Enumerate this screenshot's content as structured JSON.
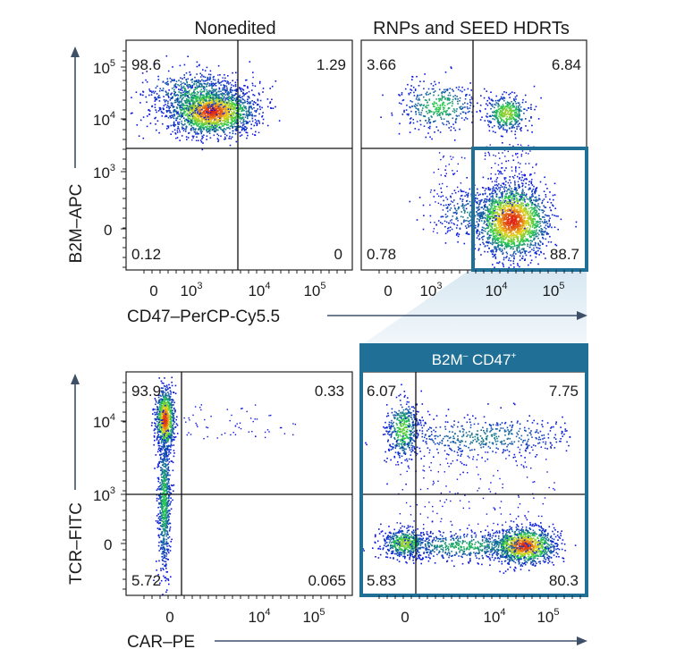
{
  "top": {
    "left_title": "Nonedited",
    "right_title": "RNPs and SEED HDRTs",
    "y_axis_label": "B2M–APC",
    "x_axis_label": "CD47–PerCP-Cy5.5",
    "y_ticks": [
      {
        "base": "10",
        "exp": "5"
      },
      {
        "base": "10",
        "exp": "4"
      },
      {
        "base": "10",
        "exp": "3"
      },
      {
        "base": "0",
        "exp": ""
      }
    ],
    "x_ticks": [
      {
        "base": "0",
        "exp": ""
      },
      {
        "base": "10",
        "exp": "3"
      },
      {
        "base": "10",
        "exp": "4"
      },
      {
        "base": "10",
        "exp": "5"
      }
    ],
    "left_quadrants": {
      "ul": "98.6",
      "ur": "1.29",
      "ll": "0.12",
      "lr": "0"
    },
    "right_quadrants": {
      "ul": "3.66",
      "ur": "6.84",
      "ll": "0.78",
      "lr": "88.7"
    }
  },
  "bottom": {
    "gate_label": {
      "base1": "B2M",
      "sup1": "–",
      "base2": " CD47",
      "sup2": "+"
    },
    "y_axis_label": "TCR–FITC",
    "x_axis_label": "CAR–PE",
    "y_ticks": [
      {
        "base": "10",
        "exp": "4"
      },
      {
        "base": "10",
        "exp": "3"
      },
      {
        "base": "0",
        "exp": ""
      }
    ],
    "x_ticks": [
      {
        "base": "0",
        "exp": ""
      },
      {
        "base": "10",
        "exp": "4"
      },
      {
        "base": "10",
        "exp": "5"
      }
    ],
    "left_quadrants": {
      "ul": "93.9",
      "ur": "0.33",
      "ll": "5.72",
      "lr": "0.065"
    },
    "right_quadrants": {
      "ul": "6.07",
      "ur": "7.75",
      "ll": "5.83",
      "lr": "80.3"
    }
  },
  "colors": {
    "gate": "#1f6f96",
    "gate_header_text": "#ffffff",
    "axis_arrow": "#3d5068",
    "density_low": "#0a10e6",
    "density_mid": "#22c94a",
    "density_high": "#e8d21a",
    "density_peak": "#e02010"
  }
}
